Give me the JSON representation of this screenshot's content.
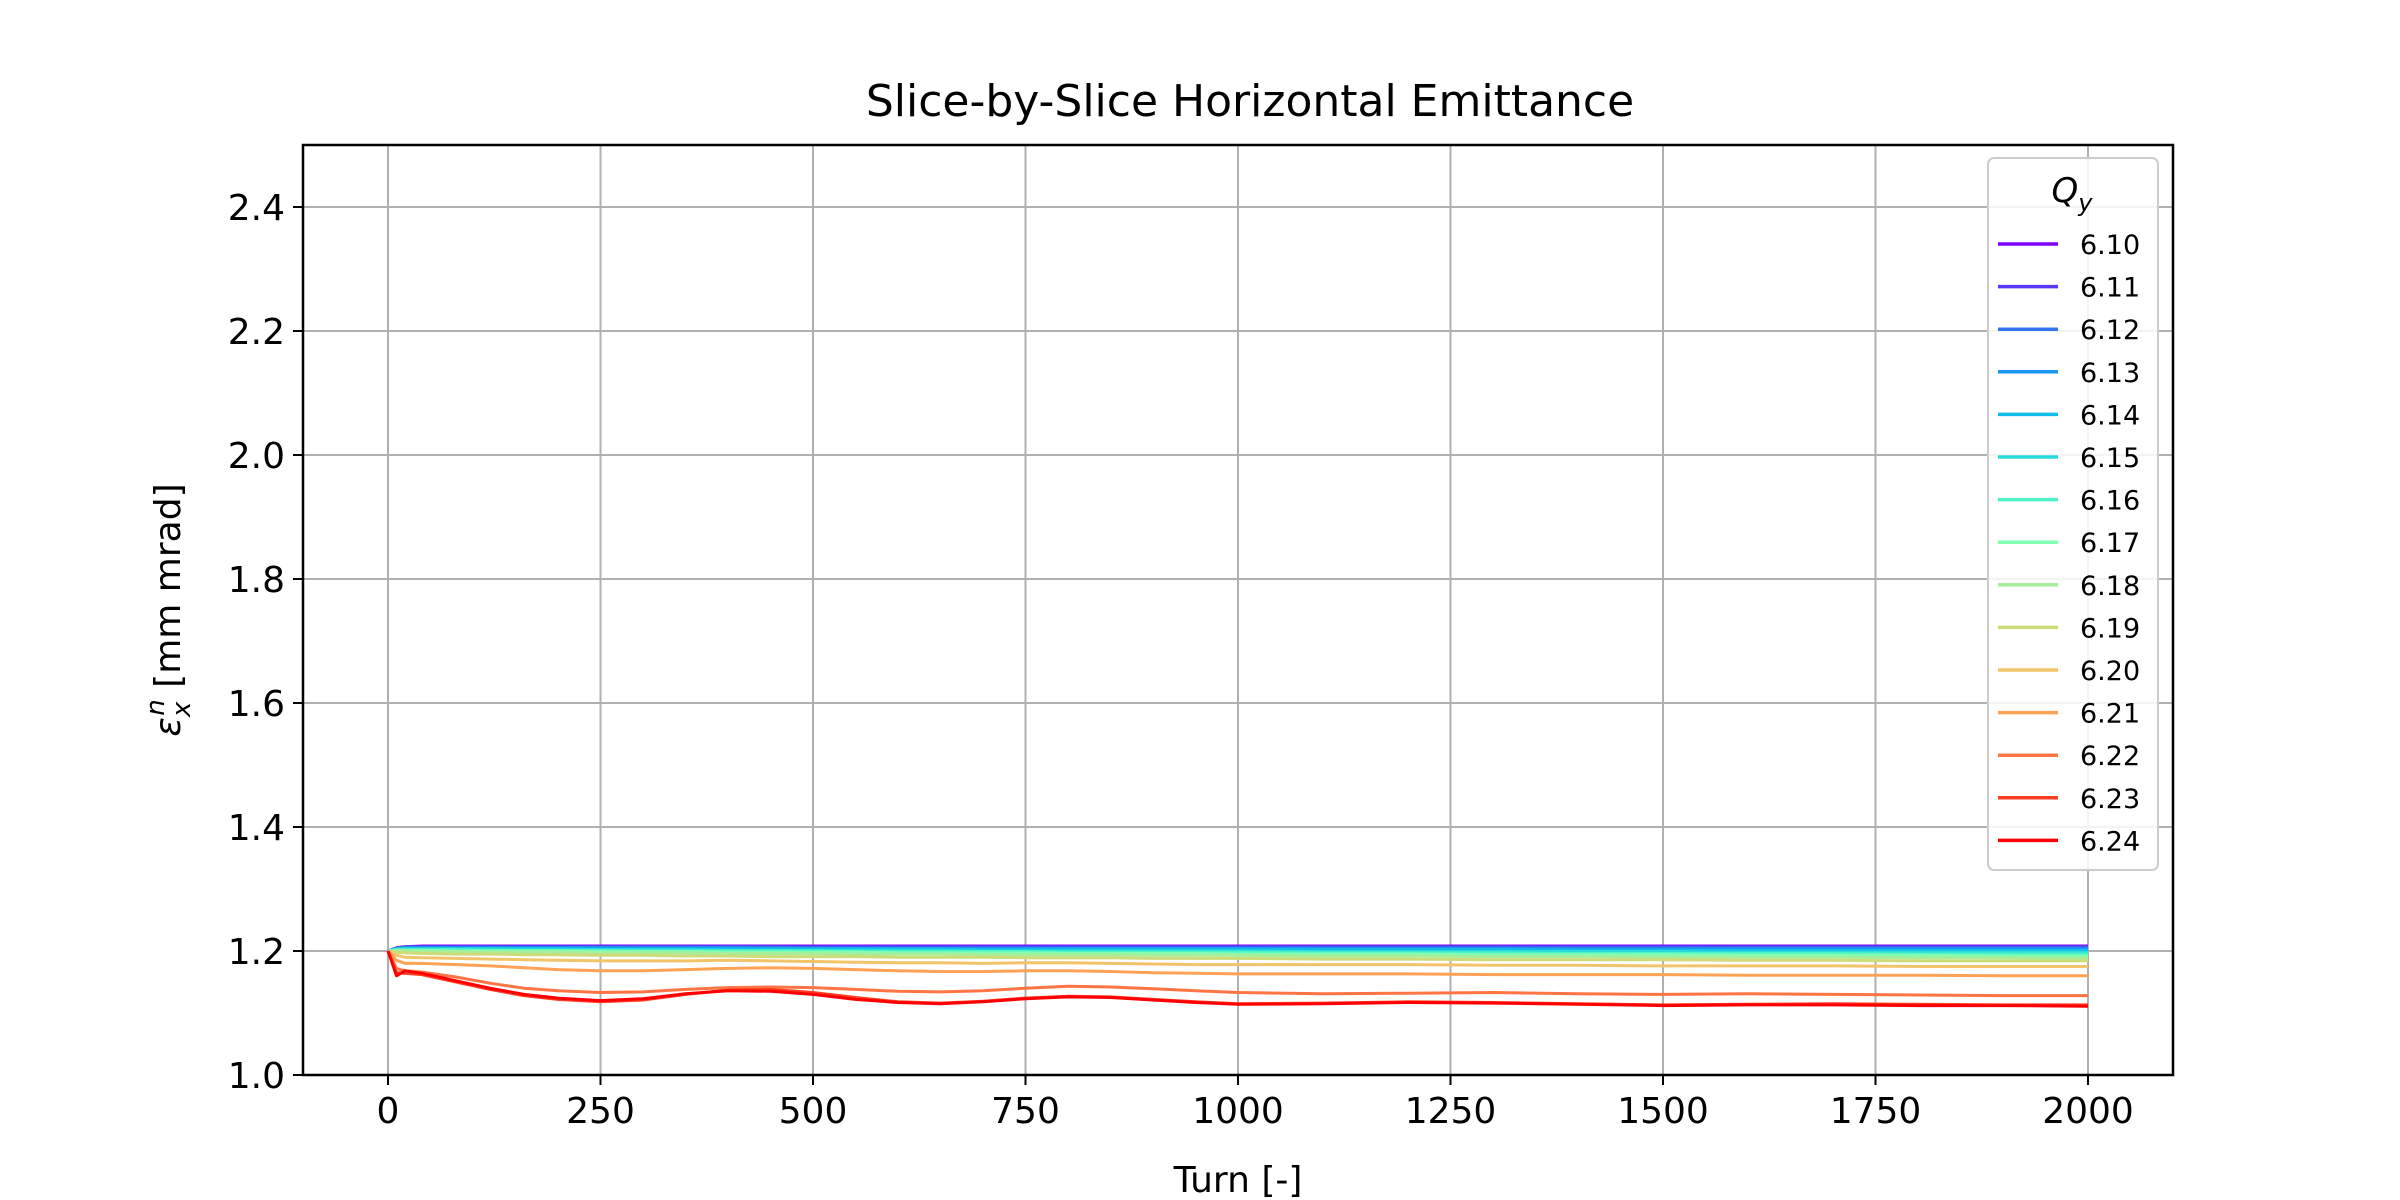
{
  "chart_data": {
    "type": "line",
    "title": "Slice-by-Slice Horizontal Emittance",
    "xlabel": "Turn [-]",
    "ylabel": "ε_x^n [mm mrad]",
    "ylabel_parts": {
      "symbol": "ε",
      "sub": "x",
      "sup": "n",
      "unit": " [mm mrad]"
    },
    "xlim": [
      -100,
      2100
    ],
    "ylim": [
      1.0,
      2.5
    ],
    "xticks": [
      0,
      250,
      500,
      750,
      1000,
      1250,
      1500,
      1750,
      2000
    ],
    "yticks": [
      1.0,
      1.2,
      1.4,
      1.6,
      1.8,
      2.0,
      2.2,
      2.4
    ],
    "ytick_labels": [
      "1.0",
      "1.2",
      "1.4",
      "1.6",
      "1.8",
      "2.0",
      "2.2",
      "2.4"
    ],
    "grid": true,
    "legend": {
      "title_symbol": "Q",
      "title_sub": "y",
      "placement": "upper-right"
    },
    "x": [
      0,
      10,
      20,
      40,
      80,
      120,
      160,
      200,
      250,
      300,
      350,
      400,
      450,
      500,
      550,
      600,
      650,
      700,
      750,
      800,
      850,
      900,
      950,
      1000,
      1100,
      1200,
      1300,
      1400,
      1500,
      1600,
      1700,
      1800,
      1900,
      2000
    ],
    "series": [
      {
        "name": "6.10",
        "color": "#7f00ff",
        "values": [
          1.2,
          1.205,
          1.207,
          1.208,
          1.208,
          1.208,
          1.208,
          1.208,
          1.208,
          1.208,
          1.208,
          1.208,
          1.208,
          1.208,
          1.208,
          1.208,
          1.208,
          1.208,
          1.208,
          1.208,
          1.208,
          1.208,
          1.208,
          1.208,
          1.208,
          1.208,
          1.208,
          1.208,
          1.208,
          1.208,
          1.208,
          1.208,
          1.208,
          1.208
        ]
      },
      {
        "name": "6.11",
        "color": "#5a38fa",
        "values": [
          1.2,
          1.205,
          1.207,
          1.207,
          1.207,
          1.207,
          1.207,
          1.207,
          1.207,
          1.207,
          1.207,
          1.207,
          1.207,
          1.207,
          1.207,
          1.207,
          1.207,
          1.207,
          1.207,
          1.207,
          1.207,
          1.207,
          1.207,
          1.207,
          1.207,
          1.207,
          1.207,
          1.207,
          1.207,
          1.207,
          1.207,
          1.207,
          1.207,
          1.207
        ]
      },
      {
        "name": "6.12",
        "color": "#3473f0",
        "values": [
          1.2,
          1.204,
          1.206,
          1.206,
          1.206,
          1.206,
          1.206,
          1.206,
          1.206,
          1.206,
          1.206,
          1.206,
          1.206,
          1.205,
          1.205,
          1.205,
          1.205,
          1.205,
          1.205,
          1.205,
          1.205,
          1.205,
          1.205,
          1.205,
          1.205,
          1.205,
          1.205,
          1.205,
          1.205,
          1.205,
          1.205,
          1.205,
          1.205,
          1.205
        ]
      },
      {
        "name": "6.13",
        "color": "#1996f3",
        "values": [
          1.2,
          1.204,
          1.205,
          1.205,
          1.205,
          1.205,
          1.205,
          1.205,
          1.205,
          1.205,
          1.205,
          1.205,
          1.204,
          1.204,
          1.204,
          1.204,
          1.204,
          1.204,
          1.204,
          1.204,
          1.204,
          1.204,
          1.204,
          1.204,
          1.204,
          1.204,
          1.204,
          1.203,
          1.203,
          1.203,
          1.203,
          1.203,
          1.203,
          1.203
        ]
      },
      {
        "name": "6.14",
        "color": "#0fbde8",
        "values": [
          1.2,
          1.203,
          1.204,
          1.204,
          1.204,
          1.204,
          1.204,
          1.204,
          1.203,
          1.203,
          1.203,
          1.203,
          1.203,
          1.203,
          1.203,
          1.203,
          1.203,
          1.202,
          1.202,
          1.202,
          1.202,
          1.202,
          1.202,
          1.202,
          1.202,
          1.202,
          1.202,
          1.201,
          1.201,
          1.201,
          1.201,
          1.201,
          1.201,
          1.201
        ]
      },
      {
        "name": "6.15",
        "color": "#2adcdc",
        "values": [
          1.2,
          1.203,
          1.203,
          1.203,
          1.203,
          1.203,
          1.202,
          1.202,
          1.202,
          1.202,
          1.202,
          1.201,
          1.201,
          1.201,
          1.201,
          1.201,
          1.201,
          1.2,
          1.2,
          1.2,
          1.2,
          1.2,
          1.2,
          1.2,
          1.199,
          1.199,
          1.199,
          1.199,
          1.199,
          1.198,
          1.198,
          1.198,
          1.198,
          1.198
        ]
      },
      {
        "name": "6.16",
        "color": "#4df3c4",
        "values": [
          1.2,
          1.202,
          1.202,
          1.202,
          1.202,
          1.201,
          1.201,
          1.201,
          1.201,
          1.2,
          1.2,
          1.2,
          1.2,
          1.2,
          1.199,
          1.199,
          1.199,
          1.199,
          1.199,
          1.198,
          1.198,
          1.198,
          1.198,
          1.198,
          1.197,
          1.197,
          1.197,
          1.196,
          1.196,
          1.196,
          1.196,
          1.195,
          1.195,
          1.195
        ]
      },
      {
        "name": "6.17",
        "color": "#80ffb4",
        "values": [
          1.2,
          1.201,
          1.201,
          1.201,
          1.2,
          1.2,
          1.2,
          1.2,
          1.199,
          1.199,
          1.199,
          1.198,
          1.198,
          1.198,
          1.198,
          1.197,
          1.197,
          1.197,
          1.197,
          1.196,
          1.196,
          1.196,
          1.196,
          1.195,
          1.195,
          1.195,
          1.194,
          1.194,
          1.194,
          1.193,
          1.193,
          1.193,
          1.192,
          1.192
        ]
      },
      {
        "name": "6.18",
        "color": "#a6ee9a",
        "values": [
          1.2,
          1.2,
          1.2,
          1.199,
          1.199,
          1.198,
          1.198,
          1.198,
          1.197,
          1.197,
          1.197,
          1.196,
          1.196,
          1.196,
          1.195,
          1.195,
          1.195,
          1.194,
          1.194,
          1.194,
          1.194,
          1.193,
          1.193,
          1.193,
          1.192,
          1.192,
          1.191,
          1.191,
          1.19,
          1.19,
          1.19,
          1.189,
          1.189,
          1.188
        ]
      },
      {
        "name": "6.19",
        "color": "#cddc79",
        "values": [
          1.2,
          1.198,
          1.197,
          1.196,
          1.195,
          1.195,
          1.194,
          1.194,
          1.193,
          1.193,
          1.192,
          1.192,
          1.191,
          1.191,
          1.191,
          1.19,
          1.19,
          1.19,
          1.189,
          1.189,
          1.189,
          1.188,
          1.188,
          1.188,
          1.187,
          1.187,
          1.186,
          1.186,
          1.186,
          1.185,
          1.185,
          1.184,
          1.184,
          1.184
        ]
      },
      {
        "name": "6.20",
        "color": "#f2c46a",
        "values": [
          1.2,
          1.193,
          1.19,
          1.189,
          1.188,
          1.187,
          1.186,
          1.185,
          1.184,
          1.184,
          1.184,
          1.185,
          1.184,
          1.183,
          1.182,
          1.181,
          1.181,
          1.18,
          1.181,
          1.181,
          1.18,
          1.179,
          1.178,
          1.178,
          1.178,
          1.178,
          1.177,
          1.177,
          1.176,
          1.176,
          1.176,
          1.175,
          1.175,
          1.175
        ]
      },
      {
        "name": "6.21",
        "color": "#ffa256",
        "values": [
          1.2,
          1.185,
          1.18,
          1.18,
          1.178,
          1.176,
          1.173,
          1.17,
          1.168,
          1.168,
          1.17,
          1.172,
          1.173,
          1.172,
          1.17,
          1.168,
          1.167,
          1.167,
          1.168,
          1.168,
          1.167,
          1.165,
          1.164,
          1.163,
          1.163,
          1.163,
          1.162,
          1.162,
          1.162,
          1.161,
          1.161,
          1.161,
          1.16,
          1.16
        ]
      },
      {
        "name": "6.22",
        "color": "#ff7444",
        "values": [
          1.2,
          1.172,
          1.168,
          1.166,
          1.158,
          1.148,
          1.14,
          1.136,
          1.133,
          1.134,
          1.138,
          1.141,
          1.142,
          1.141,
          1.138,
          1.135,
          1.134,
          1.136,
          1.14,
          1.143,
          1.142,
          1.139,
          1.136,
          1.133,
          1.131,
          1.132,
          1.133,
          1.131,
          1.13,
          1.131,
          1.13,
          1.129,
          1.128,
          1.128
        ]
      },
      {
        "name": "6.23",
        "color": "#ff3d22",
        "values": [
          1.2,
          1.165,
          1.164,
          1.162,
          1.15,
          1.138,
          1.128,
          1.122,
          1.118,
          1.121,
          1.13,
          1.137,
          1.138,
          1.133,
          1.125,
          1.118,
          1.116,
          1.119,
          1.124,
          1.127,
          1.126,
          1.122,
          1.118,
          1.115,
          1.116,
          1.118,
          1.117,
          1.115,
          1.113,
          1.114,
          1.115,
          1.114,
          1.113,
          1.113
        ]
      },
      {
        "name": "6.24",
        "color": "#ff0000",
        "values": [
          1.2,
          1.16,
          1.168,
          1.164,
          1.152,
          1.14,
          1.13,
          1.124,
          1.12,
          1.123,
          1.131,
          1.136,
          1.135,
          1.13,
          1.122,
          1.117,
          1.115,
          1.118,
          1.123,
          1.126,
          1.125,
          1.121,
          1.117,
          1.114,
          1.115,
          1.117,
          1.116,
          1.114,
          1.112,
          1.113,
          1.113,
          1.112,
          1.112,
          1.111
        ]
      }
    ]
  }
}
